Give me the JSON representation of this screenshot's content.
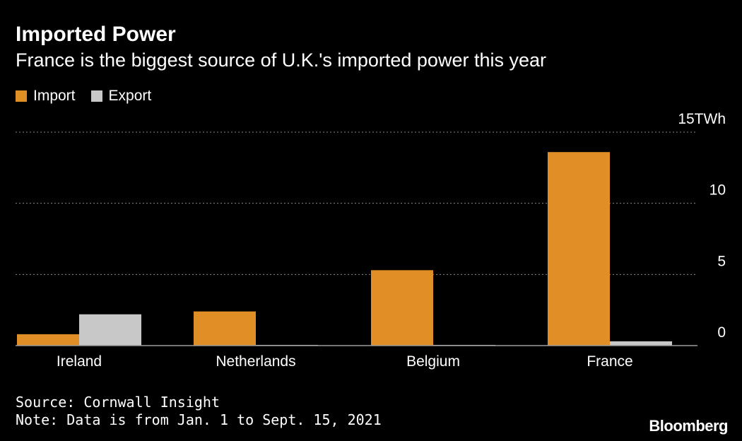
{
  "header": {
    "title": "Imported Power",
    "subtitle": "France is the biggest source of U.K.'s imported power this year"
  },
  "footer": {
    "source": "Source: Cornwall Insight",
    "note": "Note: Data is from Jan. 1 to Sept. 15, 2021",
    "brand": "Bloomberg"
  },
  "colors": {
    "import": "#e08e26",
    "export": "#c8c8c8",
    "grid": "#8a8a8a",
    "text": "#ffffff",
    "background": "#000000"
  },
  "chart_data": {
    "type": "bar",
    "title": "Imported Power",
    "subtitle": "France is the biggest source of U.K.'s imported power this year",
    "categories": [
      "Ireland",
      "Netherlands",
      "Belgium",
      "France"
    ],
    "series": [
      {
        "name": "Import",
        "values": [
          0.8,
          2.4,
          5.3,
          13.6
        ]
      },
      {
        "name": "Export",
        "values": [
          2.2,
          0.05,
          0.05,
          0.3
        ]
      }
    ],
    "ylim": [
      0,
      15
    ],
    "yticks": [
      0,
      5,
      10,
      15
    ],
    "ytick_labels": [
      "0",
      "5",
      "10",
      "15TWh"
    ],
    "ylabel": "",
    "xlabel": "",
    "grid": true,
    "legend_position": "top-left"
  }
}
